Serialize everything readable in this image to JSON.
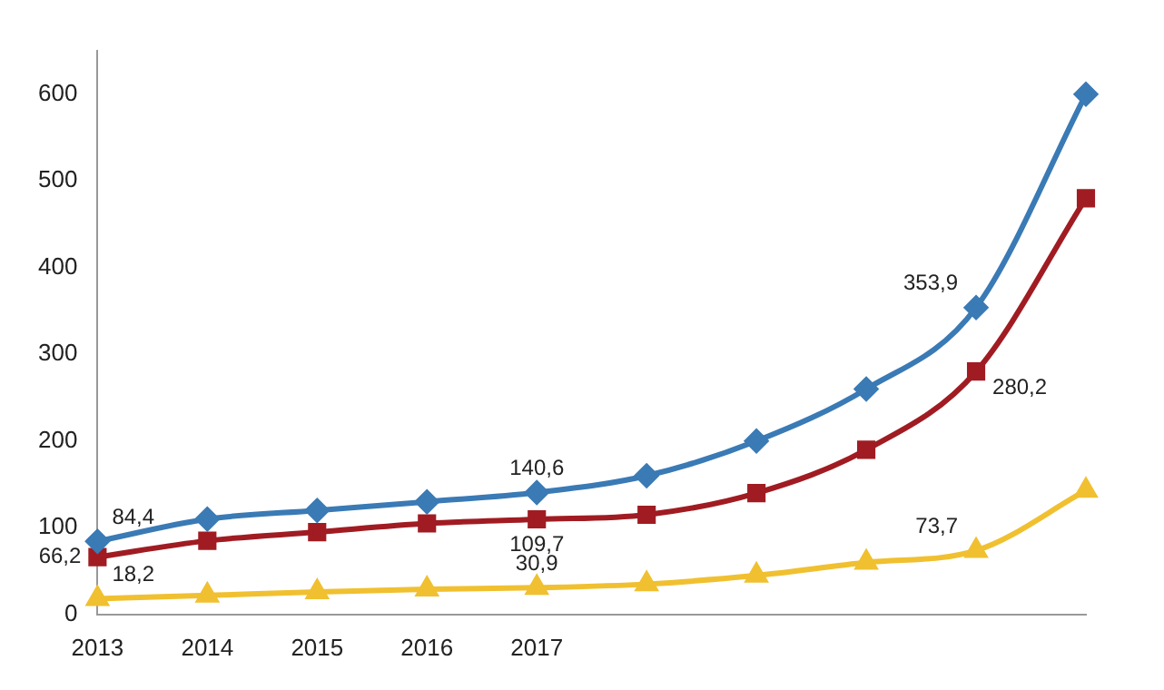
{
  "chart_data": {
    "type": "line",
    "categories": [
      "2013",
      "2014",
      "2015",
      "2016",
      "2017",
      null,
      null,
      null,
      null,
      null
    ],
    "series": [
      {
        "color": "#3a7ab5",
        "marker": "diamond",
        "values": [
          84.4,
          110,
          120,
          130,
          140.6,
          160,
          200,
          260,
          353.9,
          600
        ],
        "value_labels": [
          "84,4",
          null,
          null,
          null,
          "140,6",
          null,
          null,
          null,
          "353,9",
          null
        ]
      },
      {
        "color": "#a01c22",
        "marker": "square",
        "values": [
          66.2,
          85,
          95,
          105,
          109.7,
          115,
          140,
          190,
          280.2,
          480
        ],
        "value_labels": [
          "66,2",
          null,
          null,
          null,
          "109,7",
          null,
          null,
          null,
          "280,2",
          null
        ]
      },
      {
        "color": "#f0c030",
        "marker": "triangle",
        "values": [
          18.2,
          22,
          26,
          29,
          30.9,
          35,
          45,
          60,
          73.7,
          143
        ],
        "value_labels": [
          "18,2",
          null,
          null,
          null,
          "30,9",
          null,
          null,
          null,
          "73,7",
          null
        ]
      }
    ],
    "ylim": [
      0,
      650
    ],
    "yticks": [
      0,
      100,
      200,
      300,
      400,
      500,
      600
    ],
    "grid": false,
    "legend": false
  }
}
